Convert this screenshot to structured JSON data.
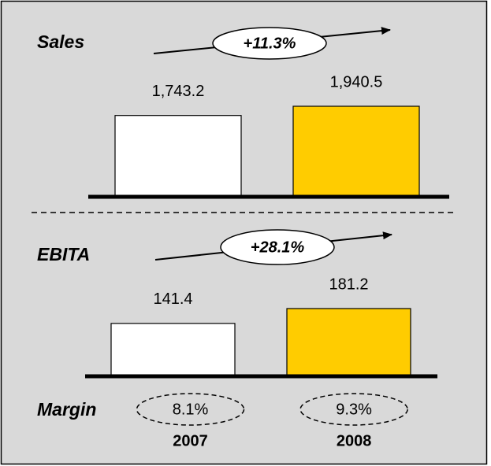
{
  "chart_data": [
    {
      "type": "bar",
      "title": "Sales",
      "values": [
        1743.2,
        1940.5
      ],
      "value_labels": [
        "1,743.2",
        "1,940.5"
      ],
      "growth": "+11.3%",
      "colors": [
        "#ffffff",
        "#ffcc00"
      ]
    },
    {
      "type": "bar",
      "title": "EBITA",
      "categories": [
        "2007",
        "2008"
      ],
      "values": [
        141.4,
        181.2
      ],
      "growth": "+28.1%",
      "colors": [
        "#ffffff",
        "#ffcc00"
      ],
      "margin_title": "Margin",
      "margins": [
        "8.1%",
        "9.3%"
      ]
    }
  ]
}
